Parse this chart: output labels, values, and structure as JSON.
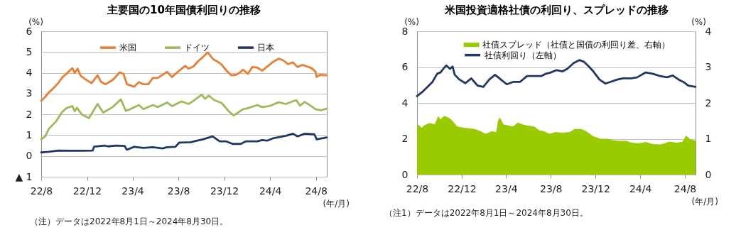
{
  "chart_data": [
    {
      "type": "line",
      "title": "主要国の10年国債利回りの推移",
      "ylabel": "(%)",
      "xlabel": "(年/月)",
      "xlim": [
        "2022-08-01",
        "2024-08-30"
      ],
      "xticks": [
        {
          "value": "2022-08",
          "label": "22/8"
        },
        {
          "value": "2022-12",
          "label": "22/12"
        },
        {
          "value": "2023-04",
          "label": "23/4"
        },
        {
          "value": "2023-08",
          "label": "23/8"
        },
        {
          "value": "2023-12",
          "label": "23/12"
        },
        {
          "value": "2024-04",
          "label": "24/4"
        },
        {
          "value": "2024-08",
          "label": "24/8"
        }
      ],
      "ylim": [
        -1,
        6
      ],
      "yticks": [
        {
          "value": -1,
          "label": "▲ 1"
        },
        0,
        1,
        2,
        3,
        4,
        5,
        6
      ],
      "grid": "y",
      "legend": "top",
      "series": [
        {
          "name": "米国",
          "color": "#ed7d31",
          "x": [
            "2022-08-01",
            "2022-08-12",
            "2022-08-21",
            "2022-09-02",
            "2022-09-15",
            "2022-09-27",
            "2022-10-04",
            "2022-10-23",
            "2022-10-29",
            "2022-11-06",
            "2022-11-14",
            "2022-11-30",
            "2022-12-13",
            "2022-12-29",
            "2023-01-07",
            "2023-01-19",
            "2023-02-07",
            "2023-02-26",
            "2023-03-08",
            "2023-03-17",
            "2023-04-05",
            "2023-04-18",
            "2023-04-30",
            "2023-05-13",
            "2023-05-25",
            "2023-06-07",
            "2023-07-02",
            "2023-07-15",
            "2023-08-03",
            "2023-08-19",
            "2023-08-28",
            "2023-09-10",
            "2023-09-22",
            "2023-10-05",
            "2023-10-18",
            "2023-10-24",
            "2023-11-02",
            "2023-11-12",
            "2023-11-24",
            "2023-12-07",
            "2023-12-20",
            "2024-01-01",
            "2024-01-11",
            "2024-01-20",
            "2024-02-02",
            "2024-02-14",
            "2024-02-27",
            "2024-03-11",
            "2024-03-23",
            "2024-04-11",
            "2024-04-24",
            "2024-05-06",
            "2024-05-19",
            "2024-06-01",
            "2024-06-13",
            "2024-06-26",
            "2024-07-09",
            "2024-07-21",
            "2024-07-31",
            "2024-08-03",
            "2024-08-12",
            "2024-08-30"
          ],
          "values": [
            2.65,
            2.85,
            3.05,
            3.25,
            3.5,
            3.8,
            3.9,
            4.22,
            4.0,
            4.2,
            3.85,
            3.65,
            3.5,
            3.88,
            3.57,
            3.45,
            3.65,
            4.02,
            3.95,
            3.45,
            3.33,
            3.55,
            3.45,
            3.45,
            3.75,
            3.75,
            4.05,
            3.8,
            4.1,
            4.33,
            4.2,
            4.3,
            4.55,
            4.75,
            4.98,
            4.85,
            4.65,
            4.55,
            4.4,
            4.1,
            3.88,
            3.9,
            4.0,
            4.15,
            3.95,
            4.28,
            4.25,
            4.1,
            4.28,
            4.55,
            4.68,
            4.6,
            4.42,
            4.5,
            4.28,
            4.38,
            4.3,
            4.22,
            4.05,
            3.8,
            3.9,
            3.88
          ]
        },
        {
          "name": "ドイツ",
          "color": "#9bbb59",
          "x": [
            "2022-08-01",
            "2022-08-12",
            "2022-08-21",
            "2022-09-09",
            "2022-09-25",
            "2022-10-07",
            "2022-10-23",
            "2022-10-29",
            "2022-11-04",
            "2022-11-17",
            "2022-12-06",
            "2022-12-29",
            "2023-01-13",
            "2023-02-07",
            "2023-03-01",
            "2023-03-14",
            "2023-03-26",
            "2023-04-18",
            "2023-04-30",
            "2023-05-25",
            "2023-06-07",
            "2023-07-02",
            "2023-07-15",
            "2023-08-09",
            "2023-08-28",
            "2023-09-10",
            "2023-10-02",
            "2023-10-11",
            "2023-10-21",
            "2023-11-05",
            "2023-11-24",
            "2023-12-13",
            "2023-12-26",
            "2024-01-08",
            "2024-01-20",
            "2024-02-02",
            "2024-02-27",
            "2024-03-11",
            "2024-03-30",
            "2024-04-24",
            "2024-05-13",
            "2024-06-01",
            "2024-06-10",
            "2024-06-20",
            "2024-07-02",
            "2024-07-15",
            "2024-07-31",
            "2024-08-15",
            "2024-08-30"
          ],
          "values": [
            0.8,
            0.95,
            1.3,
            1.65,
            2.1,
            2.3,
            2.4,
            2.15,
            2.32,
            2.0,
            1.82,
            2.5,
            2.08,
            2.35,
            2.72,
            2.17,
            2.25,
            2.45,
            2.25,
            2.45,
            2.35,
            2.57,
            2.4,
            2.62,
            2.5,
            2.65,
            2.95,
            2.75,
            2.9,
            2.68,
            2.55,
            2.15,
            1.95,
            2.1,
            2.25,
            2.3,
            2.45,
            2.35,
            2.4,
            2.58,
            2.5,
            2.63,
            2.68,
            2.42,
            2.6,
            2.45,
            2.25,
            2.2,
            2.28
          ]
        },
        {
          "name": "日本",
          "color": "#1f3864",
          "x": [
            "2022-08-01",
            "2022-08-21",
            "2022-09-15",
            "2022-10-23",
            "2022-11-15",
            "2022-12-16",
            "2022-12-20",
            "2023-01-16",
            "2023-01-26",
            "2023-02-15",
            "2023-03-11",
            "2023-03-17",
            "2023-04-05",
            "2023-04-30",
            "2023-05-25",
            "2023-06-20",
            "2023-07-02",
            "2023-07-24",
            "2023-08-03",
            "2023-09-03",
            "2023-09-20",
            "2023-10-05",
            "2023-10-31",
            "2023-11-19",
            "2023-12-07",
            "2023-12-23",
            "2024-01-14",
            "2024-01-27",
            "2024-02-27",
            "2024-03-11",
            "2024-03-25",
            "2024-04-11",
            "2024-05-13",
            "2024-06-01",
            "2024-06-13",
            "2024-07-02",
            "2024-07-28",
            "2024-08-03",
            "2024-08-30"
          ],
          "values": [
            0.17,
            0.2,
            0.26,
            0.25,
            0.25,
            0.26,
            0.45,
            0.5,
            0.46,
            0.5,
            0.48,
            0.3,
            0.44,
            0.39,
            0.42,
            0.36,
            0.42,
            0.44,
            0.64,
            0.66,
            0.74,
            0.8,
            0.94,
            0.7,
            0.7,
            0.58,
            0.58,
            0.7,
            0.7,
            0.76,
            0.74,
            0.86,
            0.97,
            1.07,
            0.94,
            1.07,
            1.04,
            0.8,
            0.89
          ]
        }
      ],
      "annotations": [
        "（注）データは2022年8月1日～2024年8月30日。"
      ]
    },
    {
      "type": "line",
      "title": "米国投資適格社債の利回り、スプレッドの推移",
      "ylabel": "(%)",
      "y2label": "(%)",
      "xlabel": "(年/月)",
      "xlim": [
        "2022-08-01",
        "2024-08-30"
      ],
      "xticks": [
        {
          "value": "2022-08",
          "label": "22/8"
        },
        {
          "value": "2022-12",
          "label": "22/12"
        },
        {
          "value": "2023-04",
          "label": "23/4"
        },
        {
          "value": "2023-08",
          "label": "23/8"
        },
        {
          "value": "2023-12",
          "label": "23/12"
        },
        {
          "value": "2024-04",
          "label": "24/4"
        },
        {
          "value": "2024-08",
          "label": "24/8"
        }
      ],
      "ylim": [
        0,
        8
      ],
      "yticks": [
        0,
        2,
        4,
        6,
        8
      ],
      "y2lim": [
        0,
        4
      ],
      "y2ticks": [
        0,
        1,
        2,
        3,
        4
      ],
      "grid": "y",
      "legend": "top left",
      "series": [
        {
          "name": "社債スプレッド（社債と国債の利回り差、右軸）",
          "type": "area",
          "axis": "y2",
          "color": "#99cc00",
          "x": [
            "2022-08-01",
            "2022-08-07",
            "2022-08-14",
            "2022-08-20",
            "2022-09-05",
            "2022-09-18",
            "2022-09-28",
            "2022-10-04",
            "2022-10-14",
            "2022-10-24",
            "2022-11-02",
            "2022-11-19",
            "2022-12-11",
            "2023-01-06",
            "2023-01-22",
            "2023-02-04",
            "2023-02-20",
            "2023-03-05",
            "2023-03-10",
            "2023-03-15",
            "2023-03-25",
            "2023-04-07",
            "2023-04-20",
            "2023-05-03",
            "2023-05-16",
            "2023-05-28",
            "2023-06-17",
            "2023-06-30",
            "2023-07-13",
            "2023-07-29",
            "2023-08-14",
            "2023-09-02",
            "2023-09-22",
            "2023-10-05",
            "2023-10-24",
            "2023-11-06",
            "2023-11-25",
            "2023-12-15",
            "2024-01-03",
            "2024-01-16",
            "2024-02-05",
            "2024-02-24",
            "2024-03-08",
            "2024-03-28",
            "2024-04-16",
            "2024-05-05",
            "2024-05-25",
            "2024-06-07",
            "2024-06-19",
            "2024-07-09",
            "2024-07-25",
            "2024-08-04",
            "2024-08-14",
            "2024-08-30"
          ],
          "values": [
            1.42,
            1.37,
            1.3,
            1.37,
            1.44,
            1.4,
            1.64,
            1.54,
            1.64,
            1.6,
            1.54,
            1.34,
            1.3,
            1.27,
            1.21,
            1.14,
            1.21,
            1.19,
            1.5,
            1.6,
            1.4,
            1.37,
            1.34,
            1.45,
            1.4,
            1.37,
            1.34,
            1.24,
            1.21,
            1.14,
            1.19,
            1.17,
            1.19,
            1.27,
            1.27,
            1.21,
            1.07,
            1.0,
            1.0,
            0.96,
            0.94,
            0.94,
            0.89,
            0.87,
            0.91,
            0.85,
            0.84,
            0.87,
            0.92,
            0.89,
            0.91,
            1.09,
            1.0,
            0.94
          ]
        },
        {
          "name": "社債利回り（左軸）",
          "type": "line",
          "color": "#1f3864",
          "x": [
            "2022-08-01",
            "2022-08-17",
            "2022-08-30",
            "2022-09-12",
            "2022-09-25",
            "2022-10-04",
            "2022-10-14",
            "2022-10-20",
            "2022-10-30",
            "2022-11-06",
            "2022-11-12",
            "2022-11-25",
            "2022-12-11",
            "2022-12-27",
            "2023-01-13",
            "2023-01-29",
            "2023-02-14",
            "2023-03-02",
            "2023-03-18",
            "2023-04-03",
            "2023-04-20",
            "2023-05-09",
            "2023-05-28",
            "2023-06-17",
            "2023-07-06",
            "2023-07-19",
            "2023-08-01",
            "2023-08-17",
            "2023-09-02",
            "2023-09-15",
            "2023-10-02",
            "2023-10-18",
            "2023-10-31",
            "2023-11-13",
            "2023-11-25",
            "2023-12-12",
            "2023-12-28",
            "2024-01-10",
            "2024-01-29",
            "2024-02-14",
            "2024-03-08",
            "2024-03-24",
            "2024-04-16",
            "2024-05-05",
            "2024-05-25",
            "2024-06-13",
            "2024-06-29",
            "2024-07-15",
            "2024-07-28",
            "2024-08-10",
            "2024-08-30"
          ],
          "values": [
            4.38,
            4.64,
            4.9,
            5.17,
            5.63,
            5.7,
            5.96,
            6.09,
            5.9,
            6.03,
            5.57,
            5.3,
            5.1,
            5.37,
            4.97,
            4.9,
            5.3,
            5.57,
            5.3,
            5.04,
            5.17,
            5.17,
            5.5,
            5.5,
            5.5,
            5.63,
            5.7,
            5.83,
            5.76,
            5.9,
            6.22,
            6.39,
            6.29,
            6.03,
            5.76,
            5.3,
            5.08,
            5.17,
            5.3,
            5.37,
            5.37,
            5.43,
            5.7,
            5.63,
            5.5,
            5.43,
            5.53,
            5.3,
            5.17,
            4.97,
            4.9
          ]
        }
      ],
      "annotations": [
        "（注1）データは2022年8月1日～2024年8月30日。"
      ]
    }
  ]
}
